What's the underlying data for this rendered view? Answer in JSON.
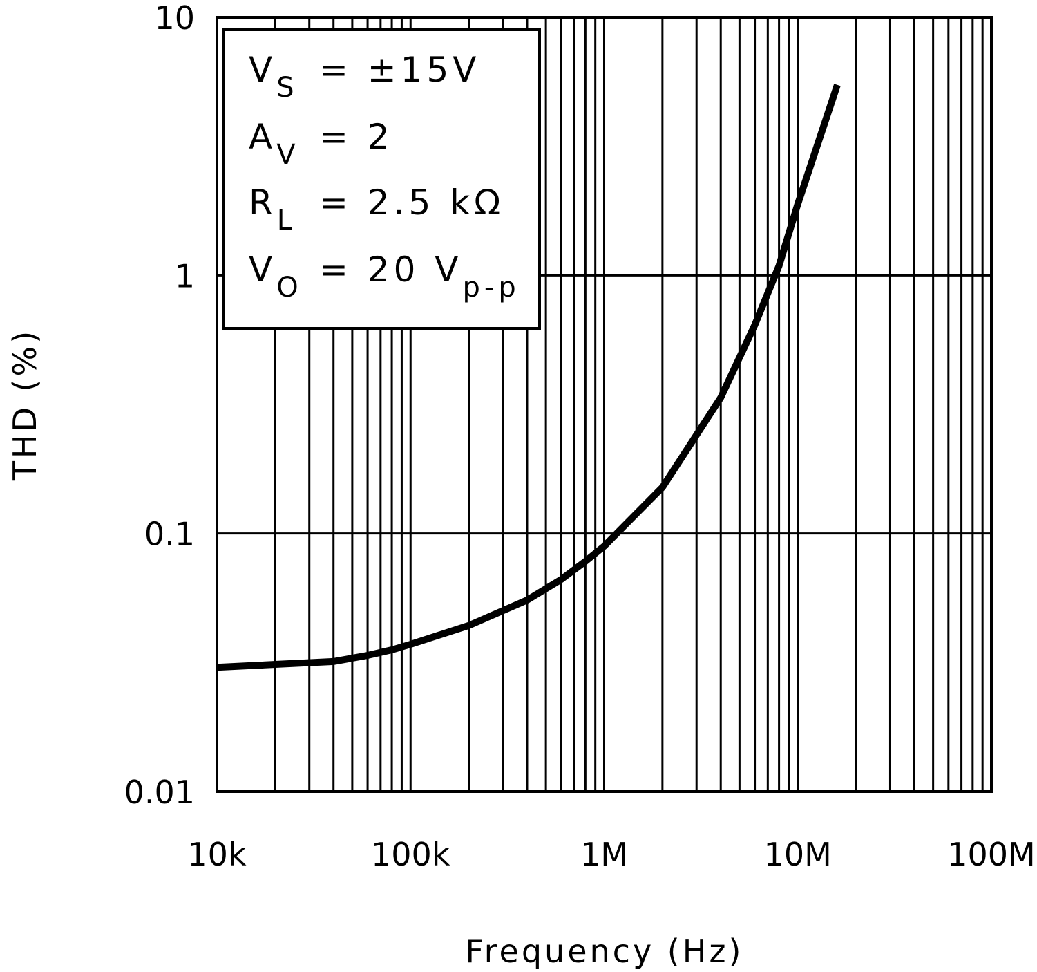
{
  "chart_data": {
    "type": "line",
    "x_label": "Frequency (Hz)",
    "y_label": "THD (%)",
    "x_log": true,
    "y_log": true,
    "x_minor_grid": true,
    "grid": true,
    "xlim": [
      10000,
      100000000
    ],
    "ylim": [
      0.01,
      10
    ],
    "xticks": [
      {
        "value": 10000,
        "label": "10k"
      },
      {
        "value": 100000,
        "label": "100k"
      },
      {
        "value": 1000000,
        "label": "1M"
      },
      {
        "value": 10000000,
        "label": "10M"
      },
      {
        "value": 100000000,
        "label": "100M"
      }
    ],
    "yticks": [
      0.01,
      0.1,
      1,
      10
    ],
    "annotations": [
      {
        "main": "V",
        "sub": "S",
        "text": "= ±15V"
      },
      {
        "main": "A",
        "sub": "V",
        "text": "= 2"
      },
      {
        "main": "R",
        "sub": "L",
        "text": "= 2.5 kΩ"
      },
      {
        "main": "V",
        "sub": "O",
        "text": "= 20 V",
        "tail_sub": "p-p"
      }
    ],
    "series": [
      {
        "color": "#000000",
        "x": [
          10000,
          20000,
          40000,
          60000,
          80000,
          100000,
          200000,
          400000,
          600000,
          800000,
          1000000,
          2000000,
          4000000,
          6000000,
          8000000,
          10000000,
          16000000
        ],
        "values": [
          0.0303,
          0.0311,
          0.0319,
          0.0337,
          0.0354,
          0.0372,
          0.044,
          0.0552,
          0.0664,
          0.078,
          0.0893,
          0.151,
          0.336,
          0.643,
          1.09,
          1.89,
          5.47
        ]
      }
    ]
  }
}
